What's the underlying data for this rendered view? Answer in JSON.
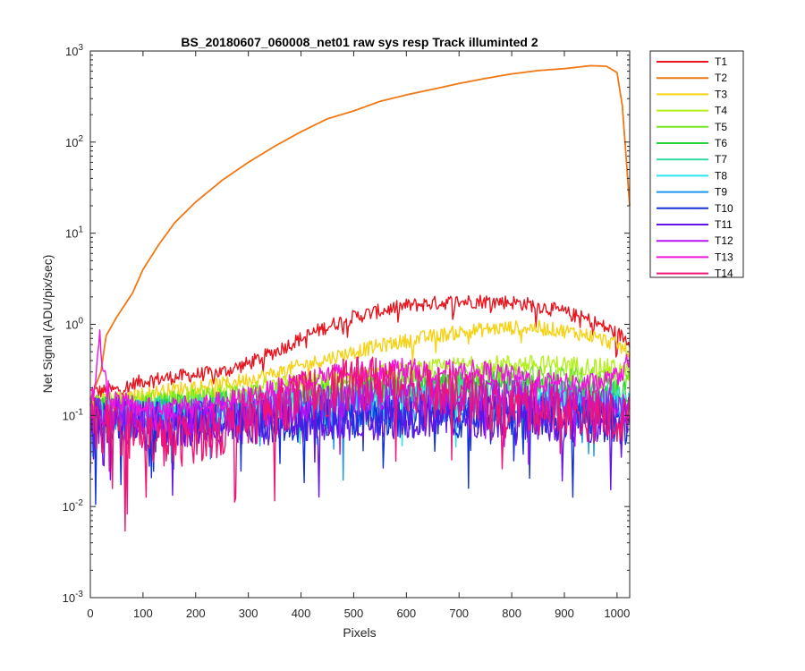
{
  "chart_data": {
    "type": "line",
    "title": "BS_20180607_060008_net01   raw sys resp    Track illuminted 2",
    "xlabel": "Pixels",
    "ylabel": "Net Signal (ADU/pix/sec)",
    "xlim": [
      0,
      1024
    ],
    "ylim": [
      0.001,
      1000
    ],
    "yscale": "log",
    "grid": false,
    "legend_position": "outside-top-right",
    "x_ticks": [
      "0",
      "100",
      "200",
      "300",
      "400",
      "500",
      "600",
      "700",
      "800",
      "900",
      "1000"
    ],
    "x_tick_values": [
      0,
      100,
      200,
      300,
      400,
      500,
      600,
      700,
      800,
      900,
      1000
    ],
    "y_tick_exponents": [
      "-3",
      "-2",
      "-1",
      "0",
      "1",
      "2",
      "3"
    ],
    "y_tick_base": "10",
    "series": [
      {
        "name": "T1",
        "color": "#e8141e",
        "noise": 0.08,
        "points": [
          [
            0,
            0.18
          ],
          [
            50,
            0.19
          ],
          [
            100,
            0.24
          ],
          [
            150,
            0.26
          ],
          [
            200,
            0.28
          ],
          [
            250,
            0.3
          ],
          [
            300,
            0.37
          ],
          [
            350,
            0.5
          ],
          [
            400,
            0.7
          ],
          [
            450,
            0.95
          ],
          [
            500,
            1.2
          ],
          [
            550,
            1.4
          ],
          [
            600,
            1.6
          ],
          [
            650,
            1.7
          ],
          [
            700,
            1.78
          ],
          [
            750,
            1.8
          ],
          [
            800,
            1.75
          ],
          [
            850,
            1.6
          ],
          [
            900,
            1.35
          ],
          [
            950,
            1.1
          ],
          [
            1000,
            0.8
          ],
          [
            1024,
            0.65
          ]
        ]
      },
      {
        "name": "T2",
        "color": "#f07814",
        "noise": 0.0,
        "points": [
          [
            0,
            0.15
          ],
          [
            20,
            0.3
          ],
          [
            30,
            0.75
          ],
          [
            50,
            1.2
          ],
          [
            80,
            2.2
          ],
          [
            100,
            4.0
          ],
          [
            130,
            7.5
          ],
          [
            160,
            13
          ],
          [
            200,
            22
          ],
          [
            250,
            38
          ],
          [
            300,
            60
          ],
          [
            350,
            90
          ],
          [
            400,
            130
          ],
          [
            450,
            180
          ],
          [
            500,
            220
          ],
          [
            550,
            280
          ],
          [
            600,
            330
          ],
          [
            650,
            380
          ],
          [
            700,
            440
          ],
          [
            750,
            500
          ],
          [
            800,
            560
          ],
          [
            850,
            610
          ],
          [
            900,
            640
          ],
          [
            950,
            690
          ],
          [
            980,
            680
          ],
          [
            1000,
            580
          ],
          [
            1010,
            250
          ],
          [
            1024,
            20
          ]
        ]
      },
      {
        "name": "T3",
        "color": "#f5d214",
        "noise": 0.08,
        "points": [
          [
            0,
            0.15
          ],
          [
            50,
            0.14
          ],
          [
            100,
            0.17
          ],
          [
            150,
            0.19
          ],
          [
            200,
            0.21
          ],
          [
            250,
            0.22
          ],
          [
            300,
            0.25
          ],
          [
            350,
            0.29
          ],
          [
            400,
            0.35
          ],
          [
            450,
            0.42
          ],
          [
            500,
            0.5
          ],
          [
            550,
            0.58
          ],
          [
            600,
            0.66
          ],
          [
            650,
            0.74
          ],
          [
            700,
            0.82
          ],
          [
            750,
            0.88
          ],
          [
            800,
            0.92
          ],
          [
            850,
            0.92
          ],
          [
            900,
            0.85
          ],
          [
            950,
            0.75
          ],
          [
            1000,
            0.6
          ],
          [
            1024,
            0.48
          ]
        ]
      },
      {
        "name": "T4",
        "color": "#b4f01e",
        "noise": 0.1,
        "points": [
          [
            0,
            0.14
          ],
          [
            100,
            0.15
          ],
          [
            200,
            0.17
          ],
          [
            300,
            0.19
          ],
          [
            400,
            0.23
          ],
          [
            500,
            0.27
          ],
          [
            600,
            0.31
          ],
          [
            700,
            0.35
          ],
          [
            800,
            0.37
          ],
          [
            900,
            0.36
          ],
          [
            1000,
            0.33
          ],
          [
            1024,
            0.3
          ]
        ]
      },
      {
        "name": "T5",
        "color": "#78e628",
        "noise": 0.12,
        "points": [
          [
            0,
            0.13
          ],
          [
            100,
            0.13
          ],
          [
            200,
            0.15
          ],
          [
            300,
            0.16
          ],
          [
            400,
            0.19
          ],
          [
            500,
            0.22
          ],
          [
            600,
            0.25
          ],
          [
            700,
            0.27
          ],
          [
            800,
            0.28
          ],
          [
            900,
            0.26
          ],
          [
            1000,
            0.24
          ],
          [
            1024,
            0.22
          ]
        ]
      },
      {
        "name": "T6",
        "color": "#28d23c",
        "noise": 0.14,
        "points": [
          [
            0,
            0.12
          ],
          [
            100,
            0.12
          ],
          [
            200,
            0.13
          ],
          [
            300,
            0.14
          ],
          [
            400,
            0.16
          ],
          [
            500,
            0.18
          ],
          [
            600,
            0.2
          ],
          [
            700,
            0.22
          ],
          [
            800,
            0.22
          ],
          [
            900,
            0.2
          ],
          [
            1000,
            0.19
          ],
          [
            1024,
            0.18
          ]
        ]
      },
      {
        "name": "T7",
        "color": "#32dca0",
        "noise": 0.16,
        "points": [
          [
            0,
            0.11
          ],
          [
            100,
            0.11
          ],
          [
            200,
            0.12
          ],
          [
            300,
            0.13
          ],
          [
            400,
            0.14
          ],
          [
            500,
            0.16
          ],
          [
            600,
            0.17
          ],
          [
            700,
            0.18
          ],
          [
            800,
            0.18
          ],
          [
            900,
            0.17
          ],
          [
            1000,
            0.16
          ],
          [
            1024,
            0.15
          ]
        ]
      },
      {
        "name": "T8",
        "color": "#28e6f0",
        "noise": 0.18,
        "points": [
          [
            0,
            0.11
          ],
          [
            100,
            0.1
          ],
          [
            200,
            0.11
          ],
          [
            300,
            0.12
          ],
          [
            400,
            0.13
          ],
          [
            500,
            0.14
          ],
          [
            600,
            0.15
          ],
          [
            700,
            0.15
          ],
          [
            800,
            0.15
          ],
          [
            900,
            0.14
          ],
          [
            1000,
            0.13
          ],
          [
            1024,
            0.13
          ]
        ]
      },
      {
        "name": "T9",
        "color": "#1e96f0",
        "noise": 0.2,
        "points": [
          [
            0,
            0.1
          ],
          [
            100,
            0.09
          ],
          [
            200,
            0.1
          ],
          [
            300,
            0.1
          ],
          [
            400,
            0.11
          ],
          [
            500,
            0.12
          ],
          [
            600,
            0.12
          ],
          [
            700,
            0.13
          ],
          [
            800,
            0.12
          ],
          [
            900,
            0.12
          ],
          [
            1000,
            0.11
          ],
          [
            1024,
            0.11
          ]
        ]
      },
      {
        "name": "T10",
        "color": "#1432dc",
        "noise": 0.25,
        "points": [
          [
            0,
            0.09
          ],
          [
            100,
            0.08
          ],
          [
            200,
            0.08
          ],
          [
            300,
            0.09
          ],
          [
            400,
            0.09
          ],
          [
            500,
            0.1
          ],
          [
            600,
            0.1
          ],
          [
            700,
            0.1
          ],
          [
            800,
            0.1
          ],
          [
            900,
            0.09
          ],
          [
            1000,
            0.09
          ],
          [
            1024,
            0.08
          ]
        ]
      },
      {
        "name": "T11",
        "color": "#6414e6",
        "noise": 0.25,
        "points": [
          [
            0,
            0.09
          ],
          [
            100,
            0.08
          ],
          [
            200,
            0.08
          ],
          [
            300,
            0.08
          ],
          [
            400,
            0.09
          ],
          [
            500,
            0.09
          ],
          [
            600,
            0.1
          ],
          [
            700,
            0.1
          ],
          [
            800,
            0.1
          ],
          [
            900,
            0.09
          ],
          [
            1000,
            0.09
          ],
          [
            1024,
            0.09
          ]
        ]
      },
      {
        "name": "T12",
        "color": "#b414f0",
        "noise": 0.2,
        "points": [
          [
            0,
            0.11
          ],
          [
            100,
            0.1
          ],
          [
            200,
            0.1
          ],
          [
            300,
            0.11
          ],
          [
            400,
            0.13
          ],
          [
            500,
            0.16
          ],
          [
            600,
            0.18
          ],
          [
            700,
            0.18
          ],
          [
            800,
            0.17
          ],
          [
            900,
            0.15
          ],
          [
            1000,
            0.13
          ],
          [
            1024,
            0.12
          ]
        ]
      },
      {
        "name": "T13",
        "color": "#f014dc",
        "noise": 0.12,
        "points": [
          [
            0,
            0.1
          ],
          [
            10,
            0.3
          ],
          [
            18,
            0.7
          ],
          [
            25,
            0.3
          ],
          [
            40,
            0.15
          ],
          [
            100,
            0.12
          ],
          [
            150,
            0.12
          ],
          [
            200,
            0.13
          ],
          [
            250,
            0.14
          ],
          [
            300,
            0.16
          ],
          [
            350,
            0.19
          ],
          [
            400,
            0.24
          ],
          [
            450,
            0.28
          ],
          [
            500,
            0.3
          ],
          [
            550,
            0.33
          ],
          [
            600,
            0.33
          ],
          [
            650,
            0.3
          ],
          [
            700,
            0.32
          ],
          [
            750,
            0.3
          ],
          [
            800,
            0.27
          ],
          [
            850,
            0.24
          ],
          [
            900,
            0.22
          ],
          [
            950,
            0.22
          ],
          [
            1000,
            0.26
          ],
          [
            1024,
            0.4
          ]
        ]
      },
      {
        "name": "T14",
        "color": "#f01478",
        "noise": 0.3,
        "points": [
          [
            0,
            0.08
          ],
          [
            50,
            0.07
          ],
          [
            100,
            0.06
          ],
          [
            150,
            0.05
          ],
          [
            200,
            0.06
          ],
          [
            250,
            0.07
          ],
          [
            300,
            0.09
          ],
          [
            350,
            0.12
          ],
          [
            400,
            0.16
          ],
          [
            450,
            0.19
          ],
          [
            500,
            0.22
          ],
          [
            550,
            0.24
          ],
          [
            600,
            0.22
          ],
          [
            650,
            0.19
          ],
          [
            700,
            0.16
          ],
          [
            750,
            0.14
          ],
          [
            800,
            0.13
          ],
          [
            850,
            0.12
          ],
          [
            900,
            0.11
          ],
          [
            950,
            0.1
          ],
          [
            1000,
            0.09
          ],
          [
            1024,
            0.09
          ]
        ]
      }
    ]
  }
}
